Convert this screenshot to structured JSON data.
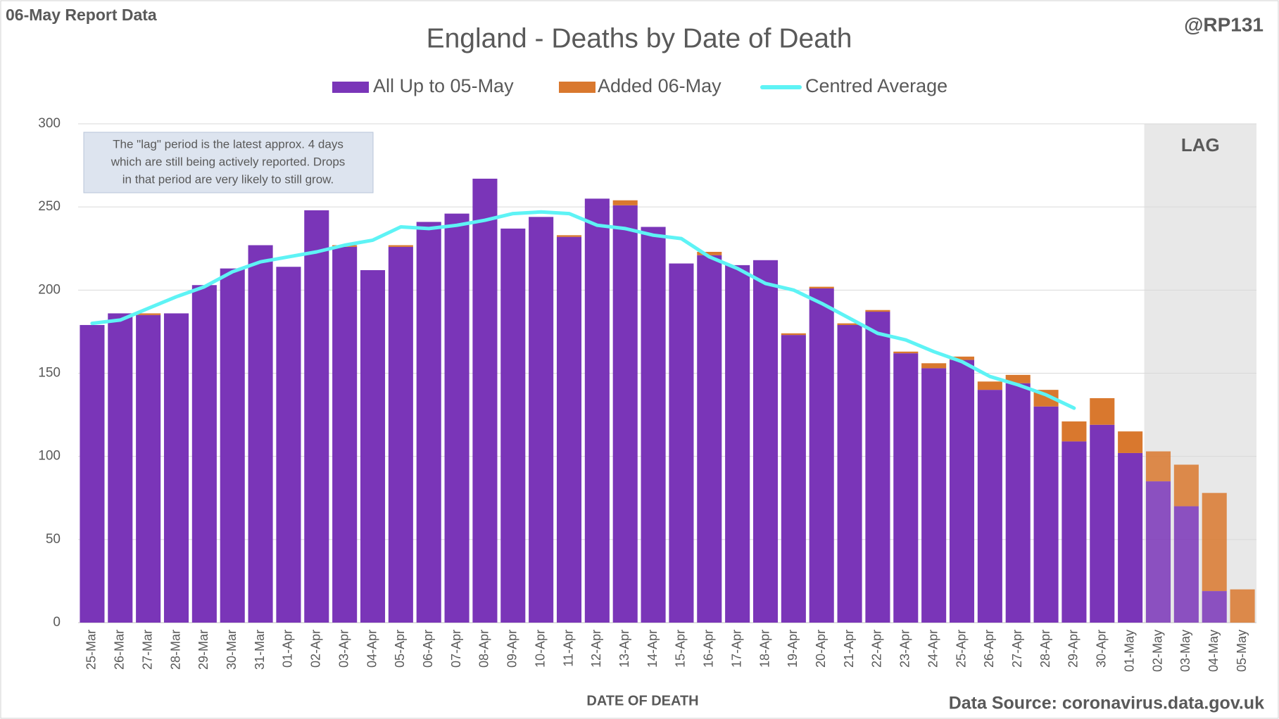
{
  "chart_data": {
    "type": "stacked_bar_line",
    "header_left": "06-May Report Data",
    "header_right": "@RP131",
    "title": "England - Deaths by Date of Death",
    "x_label": "DATE OF DEATH",
    "source": "Data Source: coronavirus.data.gov.uk",
    "annotation": [
      "The \"lag\" period is the latest approx. 4 days",
      "which are still being actively reported.  Drops",
      "in that period are very likely to still grow."
    ],
    "lag": {
      "label": "LAG",
      "from": "02-May"
    },
    "categories": [
      "25-Mar",
      "26-Mar",
      "27-Mar",
      "28-Mar",
      "29-Mar",
      "30-Mar",
      "31-Mar",
      "01-Apr",
      "02-Apr",
      "03-Apr",
      "04-Apr",
      "05-Apr",
      "06-Apr",
      "07-Apr",
      "08-Apr",
      "09-Apr",
      "10-Apr",
      "11-Apr",
      "12-Apr",
      "13-Apr",
      "14-Apr",
      "15-Apr",
      "16-Apr",
      "17-Apr",
      "18-Apr",
      "19-Apr",
      "20-Apr",
      "21-Apr",
      "22-Apr",
      "23-Apr",
      "24-Apr",
      "25-Apr",
      "26-Apr",
      "27-Apr",
      "28-Apr",
      "29-Apr",
      "30-Apr",
      "01-May",
      "02-May",
      "03-May",
      "04-May",
      "05-May"
    ],
    "series": [
      {
        "name": "All Up to 05-May",
        "kind": "bar",
        "color": "#7a35b8",
        "values": [
          179,
          186,
          185,
          186,
          203,
          213,
          227,
          214,
          248,
          226,
          212,
          226,
          241,
          246,
          267,
          237,
          244,
          232,
          255,
          251,
          238,
          216,
          221,
          215,
          218,
          173,
          201,
          179,
          187,
          162,
          153,
          158,
          140,
          144,
          130,
          109,
          119,
          102,
          85,
          70,
          19,
          0
        ]
      },
      {
        "name": "Added 06-May",
        "kind": "bar",
        "color": "#d9782e",
        "values": [
          0,
          0,
          1,
          0,
          0,
          0,
          0,
          0,
          0,
          1,
          0,
          1,
          0,
          0,
          0,
          0,
          0,
          1,
          0,
          3,
          0,
          0,
          2,
          0,
          0,
          1,
          1,
          1,
          1,
          1,
          3,
          2,
          5,
          5,
          10,
          12,
          16,
          13,
          18,
          25,
          59,
          20
        ]
      },
      {
        "name": "Centred Average",
        "kind": "line",
        "color": "#5ef3f5",
        "values": [
          180,
          182,
          189,
          196,
          202,
          211,
          217,
          220,
          223,
          227,
          230,
          238,
          237,
          239,
          242,
          246,
          247,
          246,
          239,
          237,
          233,
          231,
          220,
          213,
          204,
          200,
          192,
          183,
          174,
          170,
          163,
          157,
          148,
          143,
          137,
          129,
          null,
          null,
          null,
          null,
          null,
          null
        ]
      }
    ],
    "ylim": [
      0,
      300
    ],
    "yticks": [
      0,
      50,
      100,
      150,
      200,
      250,
      300
    ],
    "grid": true
  }
}
